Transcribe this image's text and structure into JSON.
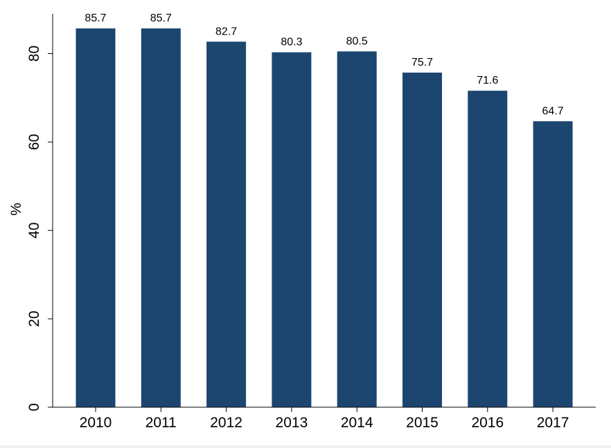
{
  "chart_data": {
    "type": "bar",
    "categories": [
      "2010",
      "2011",
      "2012",
      "2013",
      "2014",
      "2015",
      "2016",
      "2017"
    ],
    "values": [
      85.7,
      85.7,
      82.7,
      80.3,
      80.5,
      75.7,
      71.6,
      64.7
    ],
    "value_labels": [
      "85.7",
      "85.7",
      "82.7",
      "80.3",
      "80.5",
      "75.7",
      "71.6",
      "64.7"
    ],
    "title": "",
    "xlabel": "",
    "ylabel": "%",
    "ylim": [
      0,
      89
    ],
    "yticks": [
      0,
      20,
      40,
      60,
      80
    ],
    "ytick_labels": [
      "0",
      "20",
      "40",
      "60",
      "80"
    ],
    "grid": false,
    "bar_color": "#1c4670"
  }
}
